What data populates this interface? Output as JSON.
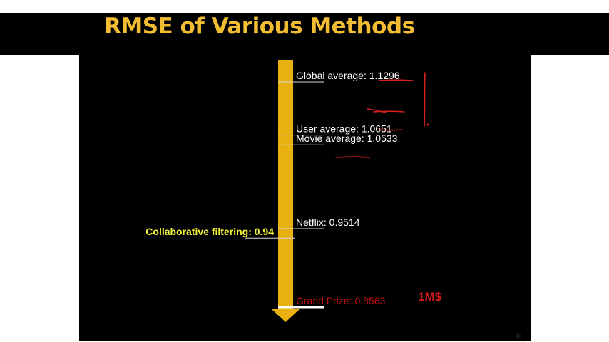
{
  "slide": {
    "title": "RMSE of Various Methods",
    "page_number": "10"
  },
  "annotations": {
    "prize_note": "1M$"
  },
  "colors": {
    "title": "#f2bd33",
    "axis_bar": "#e8b010",
    "right_labels": "#ffffff",
    "left_label": "#f4f43a",
    "grand_prize": "#c01010",
    "prize_note": "#d41a1a",
    "handwriting": "#d42020",
    "background": "#000000"
  },
  "chart_data": {
    "type": "scale",
    "title": "RMSE of Various Methods",
    "axis": "vertical arrow, RMSE decreasing downward",
    "ylim": [
      0.8563,
      1.1296
    ],
    "points": [
      {
        "label": "Global average:",
        "value": 1.1296,
        "value_text": "1.1296",
        "side": "right"
      },
      {
        "label": "User average:",
        "value": 1.0651,
        "value_text": "1.0651",
        "side": "right"
      },
      {
        "label": "Movie average:",
        "value": 1.0533,
        "value_text": "1.0533",
        "side": "right"
      },
      {
        "label": "Netflix:",
        "value": 0.9514,
        "value_text": "0.9514",
        "side": "right"
      },
      {
        "label": "Collaborative filtering:",
        "value": 0.94,
        "value_text": "0.94",
        "side": "left"
      },
      {
        "label": "Grand Prize:",
        "value": 0.8563,
        "value_text": "0.8563",
        "side": "right"
      }
    ]
  }
}
